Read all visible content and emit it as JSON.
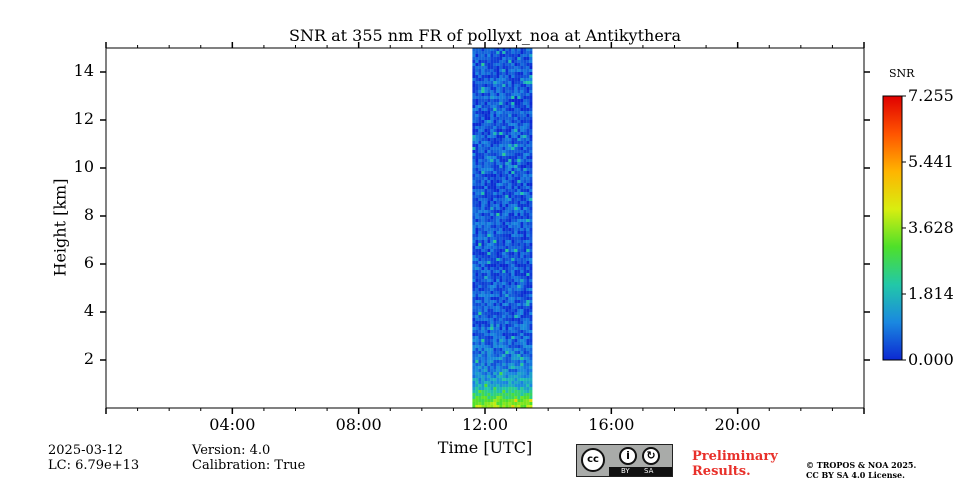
{
  "chart_data": {
    "type": "heatmap",
    "title": "SNR at 355 nm FR of pollyxt_noa at Antikythera",
    "xlabel": "Time [UTC]",
    "ylabel": "Height [km]",
    "x_ticks": [
      "04:00",
      "08:00",
      "12:00",
      "16:00",
      "20:00"
    ],
    "x_tick_hours": [
      4,
      8,
      12,
      16,
      20
    ],
    "xlim_hours": [
      0,
      24
    ],
    "y_ticks": [
      "2",
      "4",
      "6",
      "8",
      "10",
      "12",
      "14"
    ],
    "y_tick_values": [
      2,
      4,
      6,
      8,
      10,
      12,
      14
    ],
    "ylim_km": [
      0,
      15
    ],
    "data_window": {
      "start_hour": 11.6,
      "end_hour": 13.5
    },
    "profile": [
      {
        "height_km": 0.1,
        "snr": 3.6
      },
      {
        "height_km": 0.3,
        "snr": 3.2
      },
      {
        "height_km": 0.6,
        "snr": 2.4
      },
      {
        "height_km": 0.9,
        "snr": 1.6
      },
      {
        "height_km": 1.5,
        "snr": 1.0
      },
      {
        "height_km": 3.0,
        "snr": 0.6
      },
      {
        "height_km": 6.0,
        "snr": 0.5
      },
      {
        "height_km": 15.0,
        "snr": 0.5
      }
    ],
    "colorbar": {
      "label": "SNR",
      "min": 0.0,
      "max": 7.255,
      "ticks": [
        "0.000",
        "1.814",
        "3.628",
        "5.441",
        "7.255"
      ],
      "tick_values": [
        0.0,
        1.814,
        3.628,
        5.441,
        7.255
      ],
      "colors": [
        "#0c28d2",
        "#1a88e0",
        "#22c8a8",
        "#4ee02a",
        "#d8ee10",
        "#ffb400",
        "#ff5400",
        "#e00000"
      ]
    }
  },
  "footer": {
    "date": "2025-03-12",
    "lc": "LC: 6.79e+13",
    "version": "Version: 4.0",
    "calibration": "Calibration: True",
    "preliminary_line1": "Preliminary",
    "preliminary_line2": "Results.",
    "license_line1": "© TROPOS & NOA 2025.",
    "license_line2": "CC BY SA 4.0 License.",
    "cc_by": "BY",
    "cc_sa": "SA"
  }
}
